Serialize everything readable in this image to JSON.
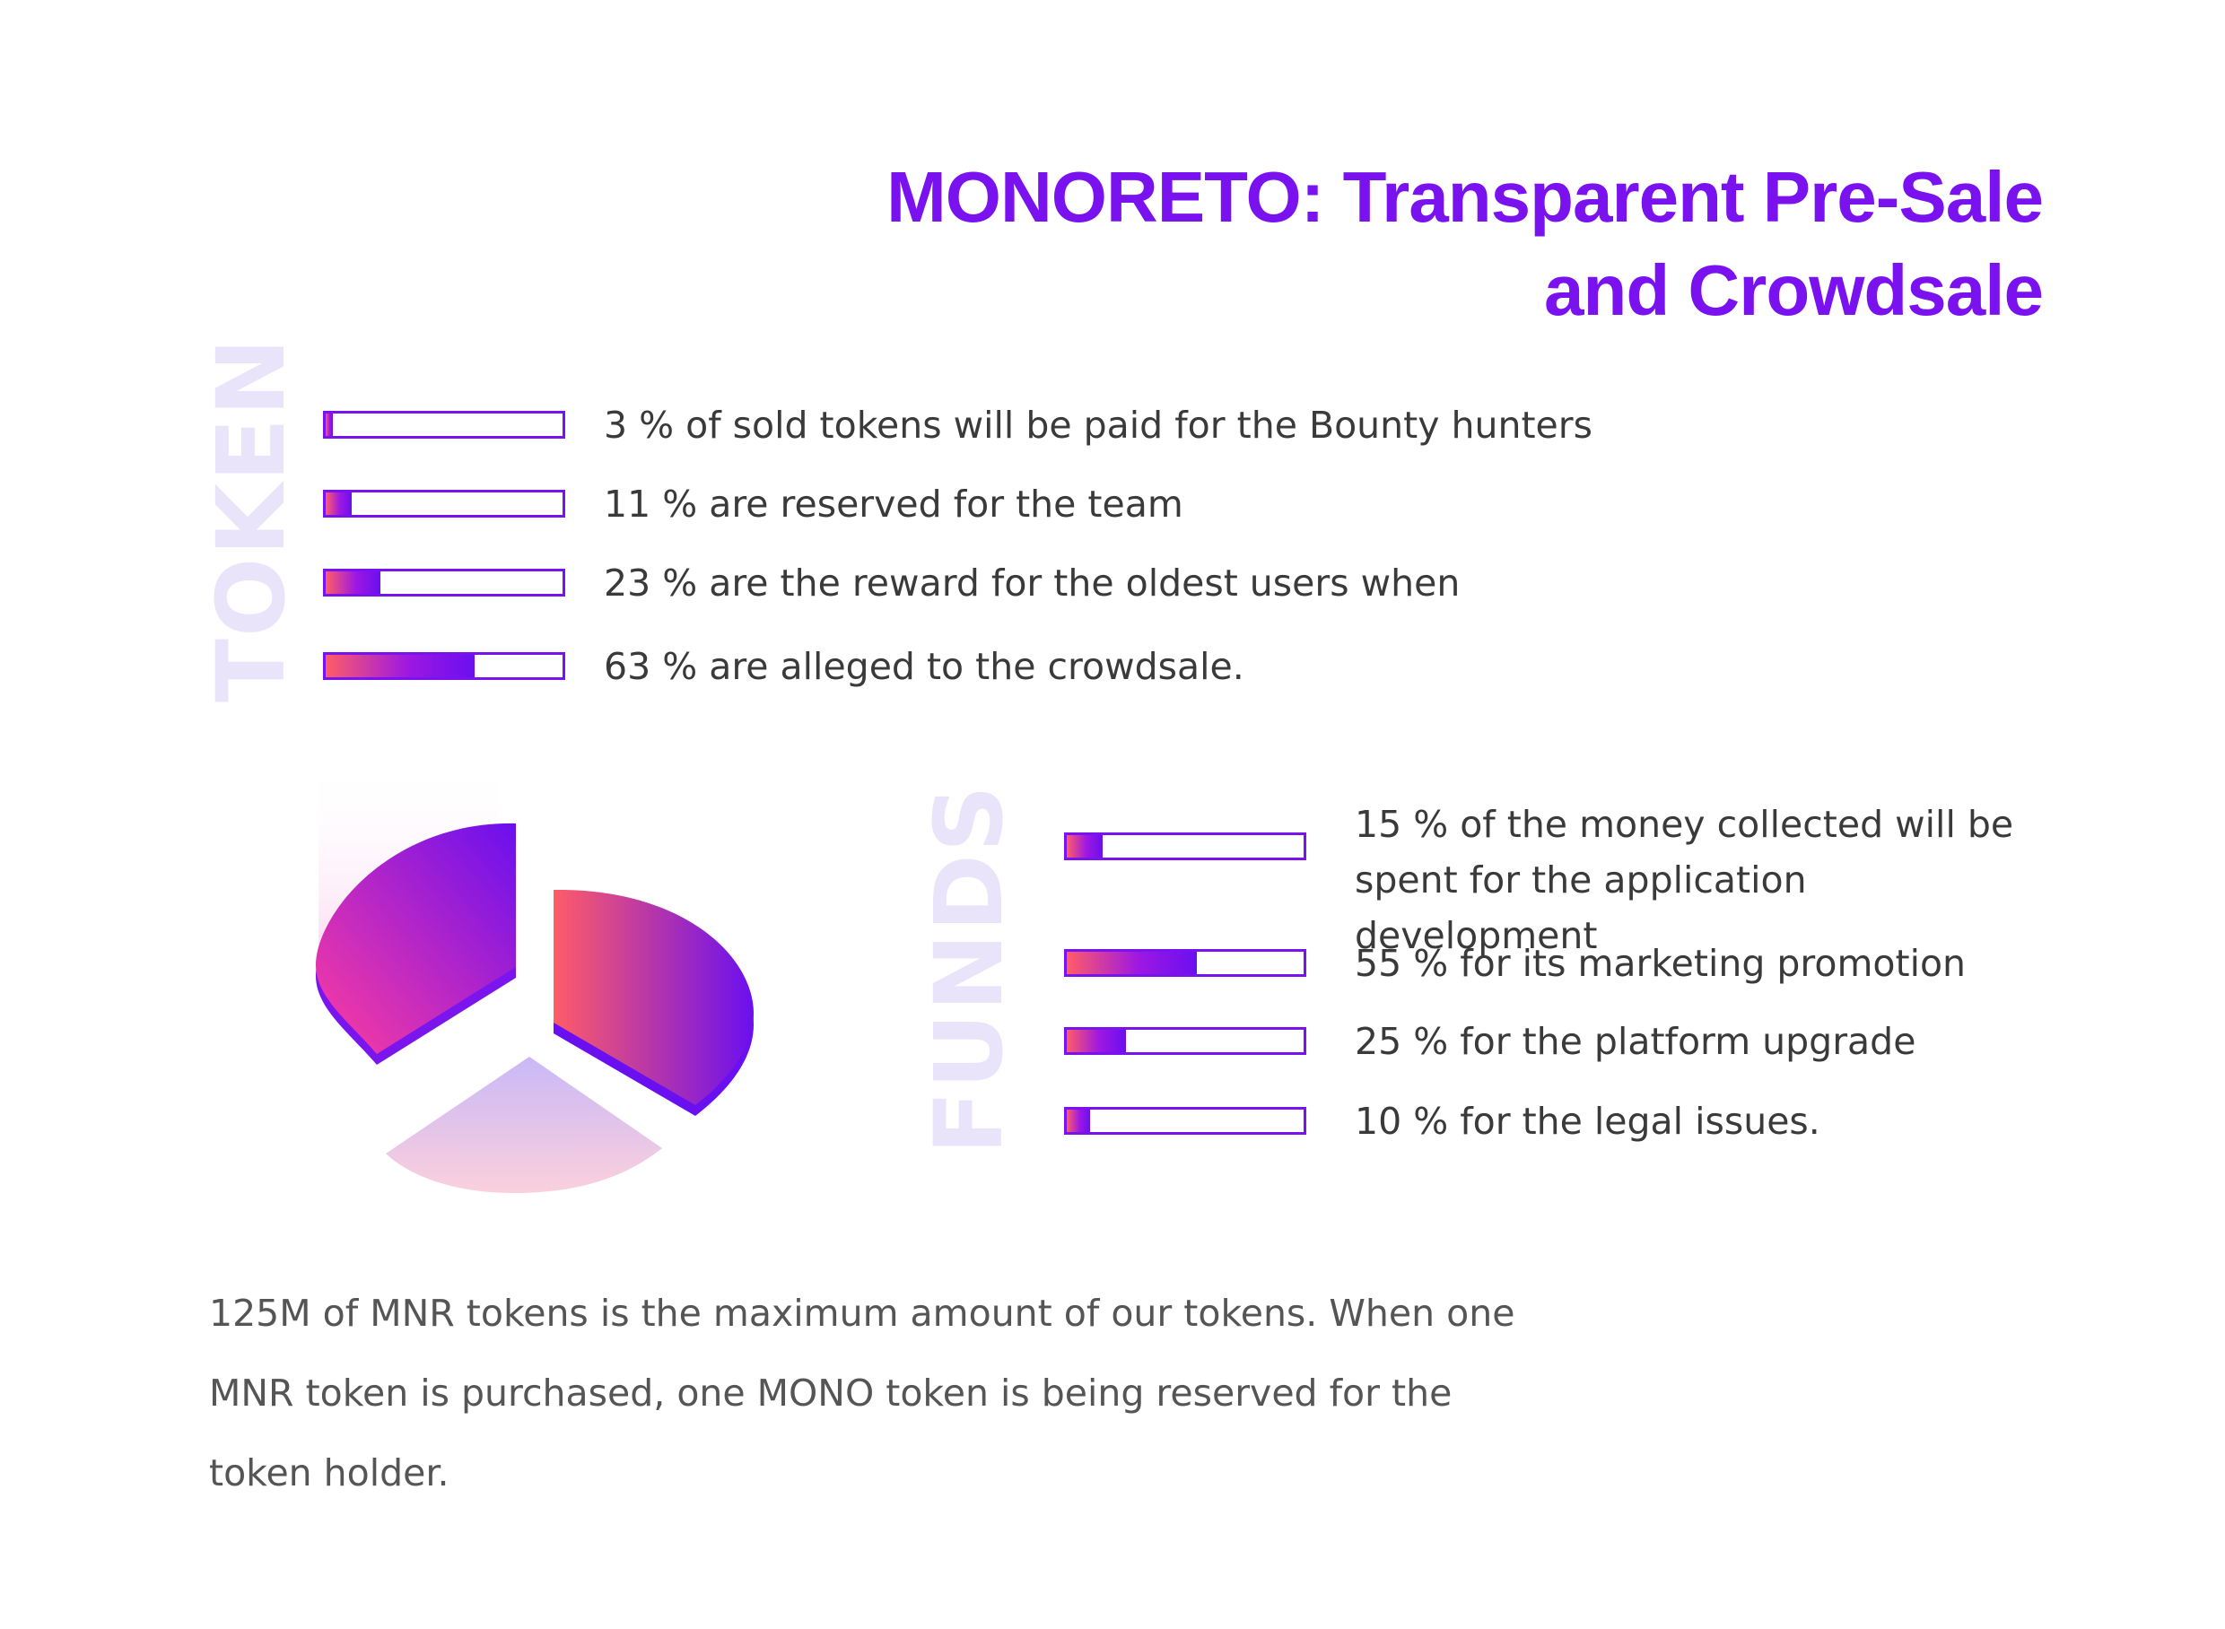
{
  "title": {
    "line1": "MONORETO: Transparent Pre-Sale",
    "line2": "and Crowdsale",
    "color": "#7a12f0"
  },
  "token_section": {
    "label": "TOKEN",
    "items": [
      {
        "percent": 3,
        "text": "3 % of sold tokens will be paid for the Bounty hunters"
      },
      {
        "percent": 11,
        "text": "11 % are reserved for the team"
      },
      {
        "percent": 23,
        "text": "23 % are the reward for the oldest users when"
      },
      {
        "percent": 63,
        "text": "63 % are alleged to the crowdsale."
      }
    ]
  },
  "funds_section": {
    "label": "FUNDS",
    "items": [
      {
        "percent": 15,
        "text": "15 % of the money collected will be spent for the application development"
      },
      {
        "percent": 55,
        "text": "55 % for its marketing promotion"
      },
      {
        "percent": 25,
        "text": "25 % for the platform upgrade"
      },
      {
        "percent": 10,
        "text": "10 % for the legal issues."
      }
    ]
  },
  "note": "125M of MNR tokens is the maximum amount of our tokens. When one MNR token is purchased, one MONO token is being reserved for the token holder.",
  "colors": {
    "accent": "#7a12f0",
    "gradient_start": "#ff5c67",
    "gradient_end": "#6a0ff0",
    "label_tint": "#eae4fb"
  }
}
